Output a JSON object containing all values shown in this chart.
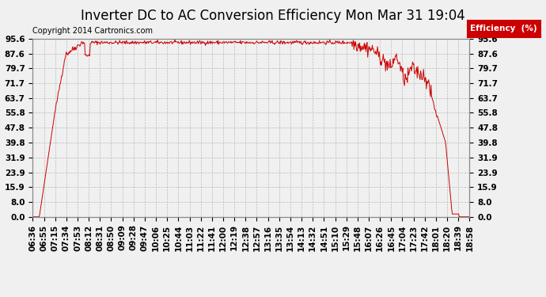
{
  "title": "Inverter DC to AC Conversion Efficiency Mon Mar 31 19:04",
  "copyright": "Copyright 2014 Cartronics.com",
  "legend_label": "Efficiency  (%)",
  "legend_bg": "#cc0000",
  "legend_text_color": "#ffffff",
  "line_color": "#cc0000",
  "bg_color": "#f0f0f0",
  "grid_color": "#bbbbbb",
  "yticks": [
    0.0,
    8.0,
    15.9,
    23.9,
    31.9,
    39.8,
    47.8,
    55.8,
    63.7,
    71.7,
    79.7,
    87.6,
    95.6
  ],
  "xtick_labels": [
    "06:36",
    "06:55",
    "07:15",
    "07:34",
    "07:53",
    "08:12",
    "08:31",
    "08:50",
    "09:09",
    "09:28",
    "09:47",
    "10:06",
    "10:25",
    "10:44",
    "11:03",
    "11:22",
    "11:41",
    "12:00",
    "12:19",
    "12:38",
    "12:57",
    "13:16",
    "13:35",
    "13:54",
    "14:13",
    "14:32",
    "14:51",
    "15:10",
    "15:29",
    "15:48",
    "16:07",
    "16:26",
    "16:45",
    "17:04",
    "17:23",
    "17:42",
    "18:01",
    "18:20",
    "18:39",
    "18:58"
  ],
  "ylim": [
    0.0,
    95.6
  ],
  "title_fontsize": 12,
  "axis_fontsize": 7.5,
  "copyright_fontsize": 7
}
